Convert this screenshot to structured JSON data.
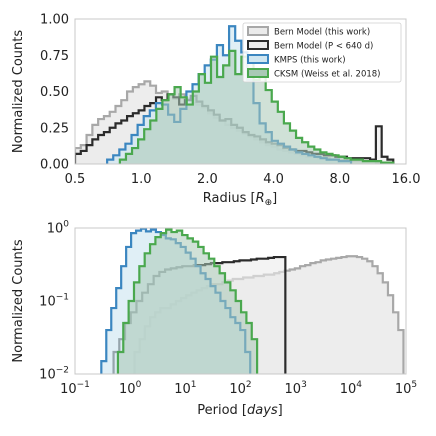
{
  "colors": {
    "bern": "#a8a8a8",
    "bern_short": "#2b2b2b",
    "kmps": "#3b86c0",
    "cksm": "#4aa84e",
    "bern_fill": "#ebebeb",
    "kmps_fill": "#cfe6f1",
    "overlap_fill": "#a9c9b6",
    "frame": "#c8c8c8"
  },
  "chart_data": [
    {
      "type": "area",
      "xscale": "log2",
      "xlim": [
        0.5,
        16.0
      ],
      "ylim": [
        0.0,
        1.0
      ],
      "xticks": [
        "0.5",
        "1.0",
        "2.0",
        "4.0",
        "8.0",
        "16.0"
      ],
      "xtick_values": [
        0.5,
        1.0,
        2.0,
        4.0,
        8.0,
        16.0
      ],
      "yticks": [
        "0.00",
        "0.25",
        "0.50",
        "0.75",
        "1.00"
      ],
      "ytick_values": [
        0.0,
        0.25,
        0.5,
        0.75,
        1.0
      ],
      "xlabel": "Radius [",
      "xlabel_symbol": "R",
      "xlabel_sub": "⊕",
      "xlabel_end": "]",
      "ylabel": "Normalized Counts",
      "legend_position": "top-right",
      "legend": [
        {
          "key": "bern",
          "label": "Bern Model (this work)"
        },
        {
          "key": "bern_short",
          "label": "Bern Model (P < 640 d)"
        },
        {
          "key": "kmps",
          "label": "KMPS (this work)"
        },
        {
          "key": "cksm",
          "label": "CKSM (Weiss et al. 2018)"
        }
      ],
      "series": [
        {
          "key": "bern",
          "edges": [
            0.5,
            14.0
          ],
          "values": [
            0.11,
            0.13,
            0.2,
            0.27,
            0.31,
            0.33,
            0.36,
            0.4,
            0.44,
            0.5,
            0.53,
            0.55,
            0.57,
            0.54,
            0.49,
            0.5,
            0.48,
            0.45,
            0.48,
            0.45,
            0.42,
            0.41,
            0.39,
            0.35,
            0.32,
            0.3,
            0.27,
            0.25,
            0.23,
            0.21,
            0.19,
            0.17,
            0.15,
            0.13,
            0.12,
            0.1,
            0.09,
            0.08,
            0.07,
            0.06,
            0.05,
            0.05,
            0.04,
            0.04,
            0.03,
            0.03,
            0.03,
            0.02,
            0.02,
            0.02,
            0.02,
            0.02,
            0.01,
            0.01,
            0.01
          ]
        },
        {
          "key": "bern_short",
          "edges": [
            0.5,
            14.0
          ],
          "values": [
            0.07,
            0.09,
            0.13,
            0.17,
            0.2,
            0.22,
            0.25,
            0.28,
            0.3,
            0.33,
            0.35,
            0.37,
            0.4,
            0.42,
            0.46,
            0.44,
            0.48,
            0.46,
            0.41,
            0.44,
            0.47,
            0.43,
            0.4,
            0.37,
            0.34,
            0.3,
            0.31,
            0.27,
            0.25,
            0.22,
            0.2,
            0.19,
            0.17,
            0.15,
            0.14,
            0.13,
            0.11,
            0.1,
            0.09,
            0.09,
            0.08,
            0.07,
            0.07,
            0.06,
            0.06,
            0.05,
            0.05,
            0.04,
            0.04,
            0.04,
            0.04,
            0.03,
            0.26,
            0.05,
            0.03
          ]
        },
        {
          "key": "kmps",
          "edges": [
            0.7,
            9.0
          ],
          "values": [
            0.03,
            0.06,
            0.1,
            0.14,
            0.2,
            0.27,
            0.33,
            0.37,
            0.42,
            0.41,
            0.34,
            0.29,
            0.38,
            0.5,
            0.55,
            0.62,
            0.68,
            0.72,
            0.82,
            0.75,
            0.95,
            0.85,
            0.77,
            0.58,
            0.42,
            0.28,
            0.22,
            0.16,
            0.14,
            0.12,
            0.1,
            0.08,
            0.07,
            0.06,
            0.05,
            0.04,
            0.03,
            0.03,
            0.02,
            0.02
          ]
        },
        {
          "key": "cksm",
          "edges": [
            0.8,
            14.0
          ],
          "values": [
            0.03,
            0.07,
            0.11,
            0.17,
            0.24,
            0.3,
            0.38,
            0.44,
            0.48,
            0.53,
            0.46,
            0.41,
            0.5,
            0.62,
            0.56,
            0.74,
            0.6,
            0.68,
            0.78,
            0.62,
            0.74,
            0.72,
            0.58,
            0.6,
            0.51,
            0.43,
            0.36,
            0.28,
            0.23,
            0.18,
            0.15,
            0.12,
            0.1,
            0.08,
            0.07,
            0.06,
            0.05,
            0.04,
            0.03,
            0.03,
            0.02,
            0.02,
            0.02,
            0.01,
            0.01
          ]
        }
      ]
    },
    {
      "type": "area",
      "xscale": "log10",
      "yscale": "log10",
      "xlim": [
        0.1,
        100000
      ],
      "ylim": [
        0.01,
        1.0
      ],
      "xticks": [
        [
          "10",
          "−1"
        ],
        [
          "10",
          "0"
        ],
        [
          "10",
          "1"
        ],
        [
          "10",
          "2"
        ],
        [
          "10",
          "3"
        ],
        [
          "10",
          "4"
        ],
        [
          "10",
          "5"
        ]
      ],
      "xtick_values": [
        0.1,
        1,
        10,
        100,
        1000,
        10000,
        100000
      ],
      "yticks": [
        [
          "10",
          "−2"
        ],
        [
          "10",
          "−1"
        ],
        [
          "10",
          "0"
        ]
      ],
      "ytick_values": [
        0.01,
        0.1,
        1.0
      ],
      "xlabel": "Period [",
      "xlabel_italic": "days",
      "xlabel_end": "]",
      "ylabel": "Normalized Counts",
      "series": [
        {
          "key": "bern",
          "edges": [
            1.2,
            90000
          ],
          "values": [
            0.02,
            0.03,
            0.045,
            0.06,
            0.07,
            0.08,
            0.08,
            0.09,
            0.1,
            0.11,
            0.12,
            0.13,
            0.14,
            0.15,
            0.16,
            0.17,
            0.17,
            0.18,
            0.19,
            0.2,
            0.2,
            0.21,
            0.21,
            0.22,
            0.22,
            0.23,
            0.23,
            0.24,
            0.25,
            0.26,
            0.27,
            0.28,
            0.3,
            0.31,
            0.33,
            0.34,
            0.36,
            0.37,
            0.38,
            0.39,
            0.4,
            0.41,
            0.41,
            0.4,
            0.38,
            0.35,
            0.3,
            0.24,
            0.18,
            0.12,
            0.07,
            0.04
          ]
        },
        {
          "key": "bern_short",
          "edges": [
            0.5,
            650
          ],
          "values": [
            0.02,
            0.03,
            0.05,
            0.07,
            0.1,
            0.13,
            0.17,
            0.22,
            0.25,
            0.27,
            0.28,
            0.29,
            0.3,
            0.3,
            0.31,
            0.31,
            0.32,
            0.33,
            0.33,
            0.34,
            0.34,
            0.35,
            0.36,
            0.36,
            0.37,
            0.38,
            0.38,
            0.39,
            0.4,
            0.4
          ]
        },
        {
          "key": "kmps",
          "edges": [
            0.3,
            150
          ],
          "values": [
            0.015,
            0.04,
            0.08,
            0.15,
            0.3,
            0.55,
            0.85,
            0.92,
            0.98,
            0.9,
            0.95,
            0.88,
            0.8,
            0.72,
            0.7,
            0.62,
            0.55,
            0.46,
            0.38,
            0.3,
            0.24,
            0.2,
            0.16,
            0.13,
            0.1,
            0.08,
            0.06,
            0.05,
            0.04,
            0.02
          ]
        },
        {
          "key": "cksm",
          "edges": [
            0.6,
            200
          ],
          "values": [
            0.02,
            0.05,
            0.1,
            0.18,
            0.3,
            0.45,
            0.6,
            0.75,
            0.85,
            0.95,
            0.88,
            0.92,
            0.8,
            0.72,
            0.65,
            0.55,
            0.45,
            0.38,
            0.3,
            0.24,
            0.18,
            0.14,
            0.1,
            0.07,
            0.05,
            0.03
          ]
        }
      ]
    }
  ]
}
